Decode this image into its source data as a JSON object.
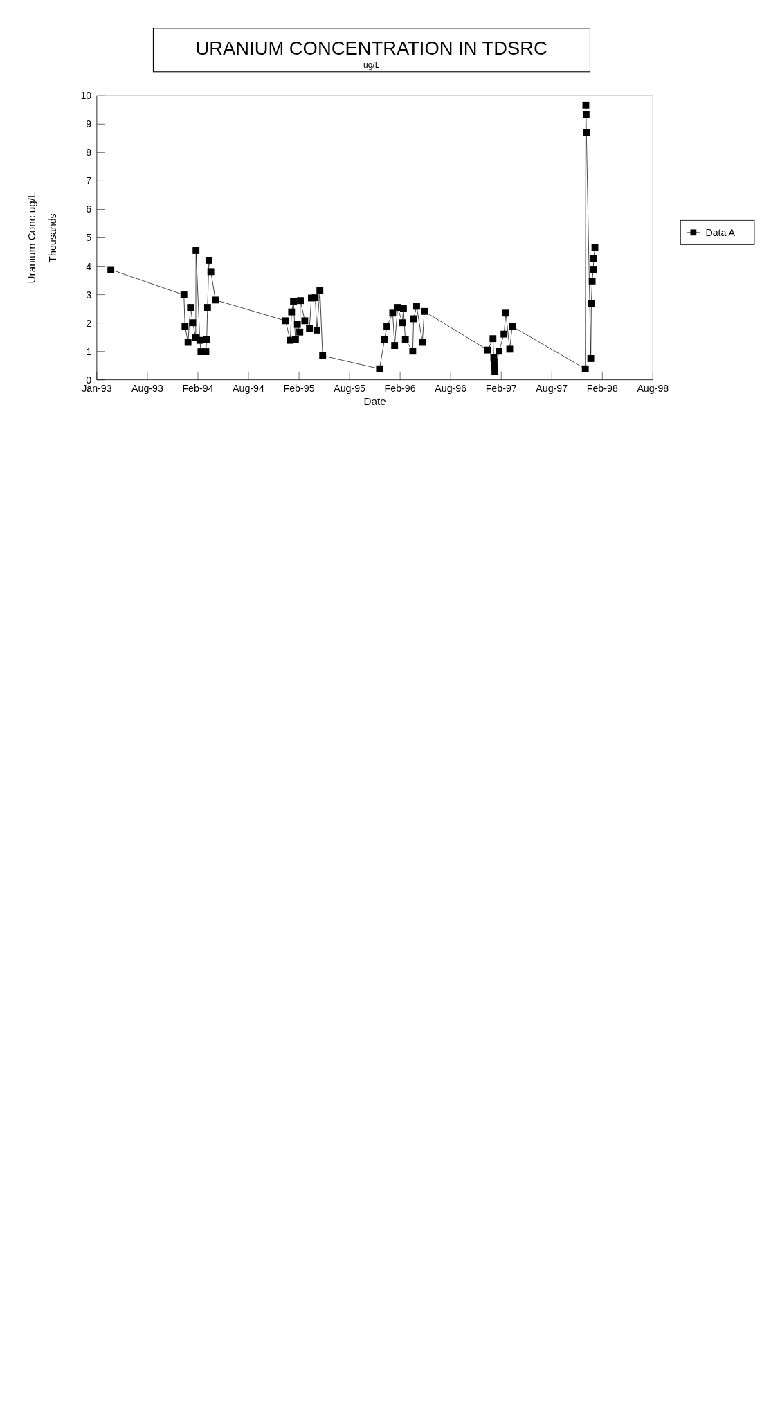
{
  "chart_data": {
    "type": "line",
    "title": "URANIUM CONCENTRATION IN TDSRC",
    "subtitle": "ug/L",
    "xlabel": "Date",
    "ylabel": "Uranium Conc ug/L",
    "annotations": [
      "Thousands"
    ],
    "xlim": [
      "1993-01-31",
      "1998-08-17"
    ],
    "xticks": [
      {
        "value": "1993-01-31",
        "label": "Jan-93"
      },
      {
        "value": "1993-08-03",
        "label": "Aug-93"
      },
      {
        "value": "1994-02-03",
        "label": "Feb-94"
      },
      {
        "value": "1994-08-06",
        "label": "Aug-94"
      },
      {
        "value": "1995-02-06",
        "label": "Feb-95"
      },
      {
        "value": "1995-08-09",
        "label": "Aug-95"
      },
      {
        "value": "1996-02-09",
        "label": "Feb-96"
      },
      {
        "value": "1996-08-11",
        "label": "Aug-96"
      },
      {
        "value": "1997-02-11",
        "label": "Feb-97"
      },
      {
        "value": "1997-08-14",
        "label": "Aug-97"
      },
      {
        "value": "1998-02-14",
        "label": "Feb-98"
      },
      {
        "value": "1998-08-17",
        "label": "Aug-98"
      }
    ],
    "ylim": [
      0,
      10
    ],
    "yticks": [
      0,
      1,
      2,
      3,
      4,
      5,
      6,
      7,
      8,
      9,
      10
    ],
    "grid": false,
    "legend": "right",
    "marker": "square",
    "line_style": "solid",
    "series": [
      {
        "name": "Data A",
        "color": "#000000",
        "x": [
          "1993-03-23",
          "1993-12-14",
          "1993-12-18",
          "1993-12-29",
          "1994-01-07",
          "1994-01-15",
          "1994-01-26",
          "1994-01-27",
          "1994-02-10",
          "1994-02-14",
          "1994-03-04",
          "1994-03-07",
          "1994-03-10",
          "1994-03-15",
          "1994-03-22",
          "1994-04-08",
          "1994-12-19",
          "1995-01-05",
          "1995-01-10",
          "1995-01-17",
          "1995-01-24",
          "1995-01-31",
          "1995-02-09",
          "1995-02-11",
          "1995-02-27",
          "1995-03-16",
          "1995-03-23",
          "1995-04-06",
          "1995-04-12",
          "1995-04-23",
          "1995-05-03",
          "1995-11-26",
          "1995-12-14",
          "1995-12-23",
          "1996-01-13",
          "1996-01-20",
          "1996-01-31",
          "1996-02-17",
          "1996-02-21",
          "1996-02-28",
          "1996-03-26",
          "1996-03-29",
          "1996-04-09",
          "1996-04-30",
          "1996-05-07",
          "1996-12-24",
          "1997-01-12",
          "1997-01-15",
          "1997-01-16",
          "1997-01-18",
          "1997-01-19",
          "1997-02-03",
          "1997-02-21",
          "1997-02-28",
          "1997-03-14",
          "1997-03-23",
          "1997-12-14",
          "1997-12-16",
          "1997-12-17",
          "1997-12-18",
          "1998-01-03",
          "1998-01-05",
          "1998-01-08",
          "1998-01-12",
          "1998-01-14",
          "1998-01-18"
        ],
        "values": [
          3.88,
          2.99,
          1.89,
          1.32,
          2.55,
          2.01,
          1.48,
          4.55,
          1.39,
          0.99,
          0.99,
          1.41,
          2.55,
          4.21,
          3.81,
          2.81,
          2.08,
          1.39,
          2.39,
          2.75,
          1.41,
          1.95,
          1.68,
          2.79,
          2.08,
          1.81,
          2.88,
          2.89,
          1.75,
          3.15,
          0.85,
          0.39,
          1.41,
          1.88,
          2.35,
          1.21,
          2.55,
          2.01,
          2.52,
          1.41,
          1.01,
          2.15,
          2.59,
          1.32,
          2.41,
          1.05,
          1.45,
          0.8,
          0.6,
          0.45,
          0.3,
          1.01,
          1.61,
          2.35,
          1.08,
          1.88,
          0.39,
          9.67,
          9.33,
          8.71,
          0.75,
          2.69,
          3.48,
          3.89,
          4.28,
          4.65
        ]
      }
    ]
  }
}
